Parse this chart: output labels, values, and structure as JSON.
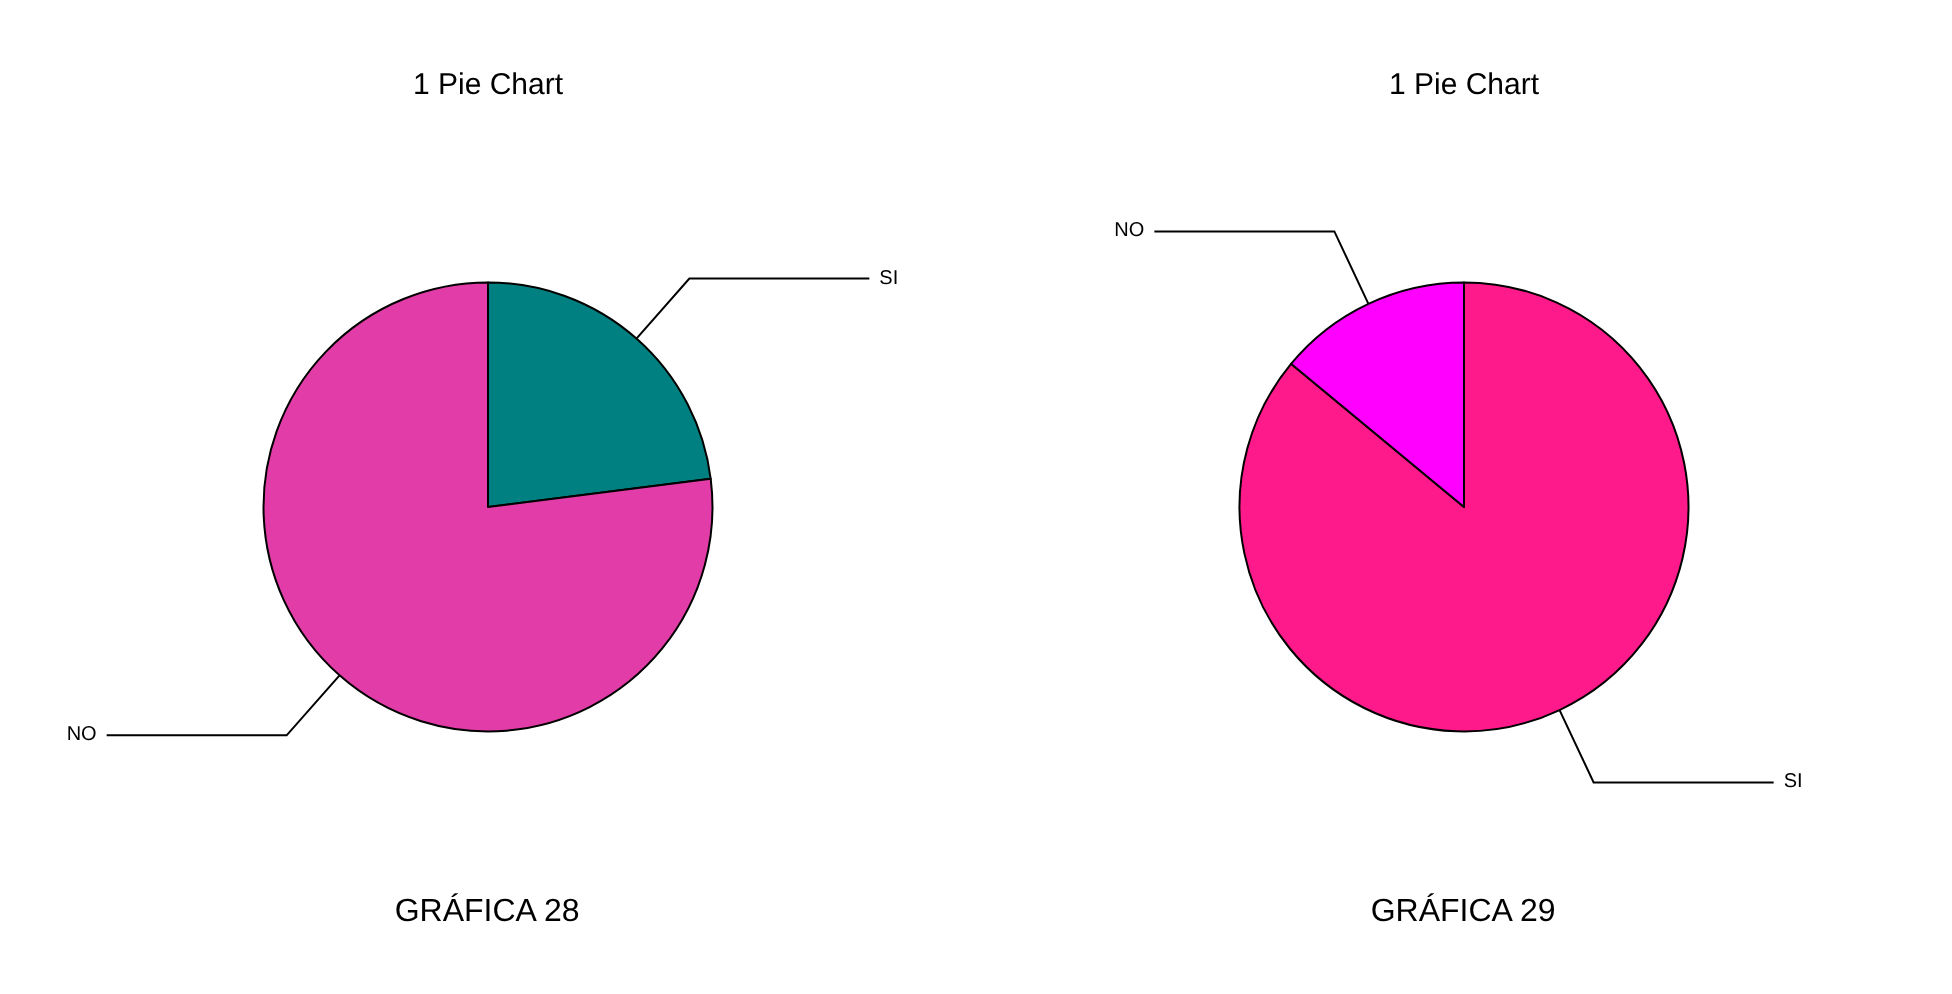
{
  "chart_data": [
    {
      "type": "pie",
      "title": "1 Pie Chart",
      "categories": [
        "SI",
        "NO"
      ],
      "values": [
        23,
        77
      ],
      "colors": [
        "#008080",
        "#e23ca8"
      ],
      "annotations": [
        "GRÁFICA 28"
      ]
    },
    {
      "type": "pie",
      "title": "1 Pie Chart",
      "categories": [
        "SI",
        "NO"
      ],
      "values": [
        86,
        14
      ],
      "colors": [
        "#ff1a8c",
        "#ff00ff"
      ],
      "annotations": [
        "GRÁFICA 29"
      ]
    }
  ]
}
